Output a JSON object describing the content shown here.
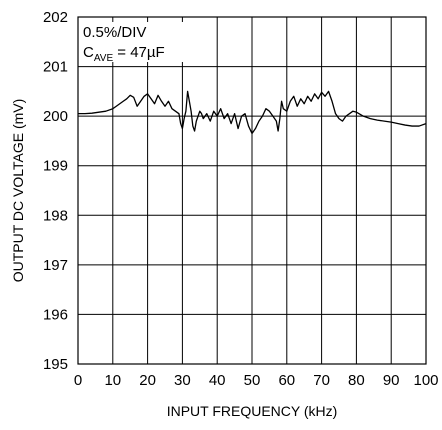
{
  "chart_data": {
    "type": "line",
    "title": "",
    "xlabel": "INPUT FREQUENCY (kHz)",
    "ylabel": "OUTPUT DC VOLTAGE (mV)",
    "xlim": [
      0,
      100
    ],
    "ylim": [
      195,
      202
    ],
    "x_ticks": [
      "0",
      "10",
      "20",
      "30",
      "40",
      "50",
      "60",
      "70",
      "80",
      "90",
      "100"
    ],
    "y_ticks": [
      "202",
      "201",
      "200",
      "199",
      "198",
      "197",
      "196",
      "195"
    ],
    "grid": true,
    "legend": "none",
    "line_color": "#000000",
    "annotations": {
      "line1": "0.5%/DIV",
      "c_main": "C",
      "c_sub": "AVE",
      "c_value": " = 47µF"
    },
    "series": [
      {
        "x": [
          0,
          2,
          4,
          6,
          8,
          10,
          11,
          12,
          13,
          14,
          15,
          16,
          17,
          18,
          19,
          20,
          21,
          22,
          23,
          24,
          25,
          26,
          27,
          28,
          29,
          29.5,
          30,
          30.5,
          31,
          31.5,
          32,
          32.5,
          33,
          33.5,
          34,
          34.5,
          35,
          35.5,
          36,
          37,
          38,
          39,
          40,
          41,
          42,
          43,
          44,
          45,
          46,
          47,
          48,
          49,
          50,
          51,
          52,
          53,
          54,
          55,
          56,
          57,
          57.5,
          58,
          58.5,
          59,
          60,
          61,
          62,
          63,
          64,
          65,
          66,
          67,
          68,
          69,
          70,
          71,
          72,
          73,
          74,
          75,
          76,
          77,
          78,
          79,
          80,
          82,
          84,
          86,
          88,
          90,
          92,
          94,
          96,
          98,
          100
        ],
        "y": [
          200.05,
          200.05,
          200.06,
          200.08,
          200.1,
          200.15,
          200.2,
          200.25,
          200.3,
          200.35,
          200.42,
          200.38,
          200.2,
          200.3,
          200.4,
          200.45,
          200.35,
          200.25,
          200.42,
          200.3,
          200.2,
          200.3,
          200.15,
          200.1,
          200.05,
          199.85,
          199.75,
          199.95,
          200.1,
          200.5,
          200.3,
          200.1,
          199.8,
          199.7,
          199.9,
          200.0,
          200.1,
          200.05,
          199.95,
          200.05,
          199.9,
          200.1,
          200.0,
          200.15,
          199.95,
          200.05,
          199.85,
          200.05,
          199.75,
          200.0,
          200.05,
          199.8,
          199.65,
          199.75,
          199.9,
          200.0,
          200.15,
          200.1,
          200.0,
          199.9,
          199.7,
          199.95,
          200.3,
          200.15,
          200.1,
          200.3,
          200.4,
          200.2,
          200.35,
          200.25,
          200.4,
          200.3,
          200.45,
          200.35,
          200.48,
          200.4,
          200.5,
          200.3,
          200.05,
          199.95,
          199.9,
          200.0,
          200.05,
          200.1,
          200.08,
          200.0,
          199.95,
          199.92,
          199.9,
          199.88,
          199.85,
          199.82,
          199.8,
          199.8,
          199.85
        ]
      }
    ]
  }
}
